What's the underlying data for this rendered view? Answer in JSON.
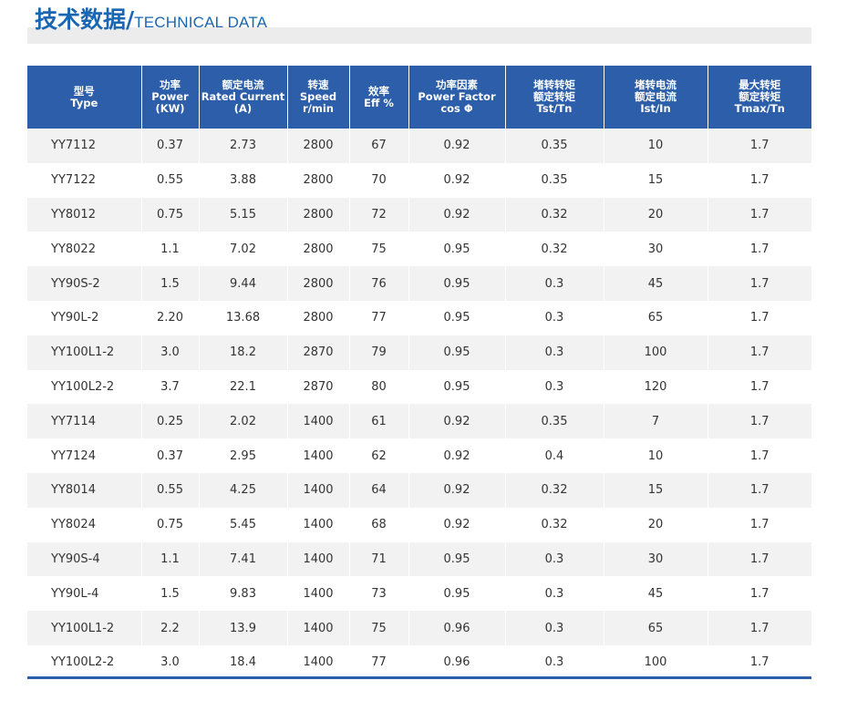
{
  "header": {
    "title_cn": "技术数据/",
    "title_en": "TECHNICAL DATA"
  },
  "table": {
    "columns": [
      [
        "型号",
        "Type"
      ],
      [
        "功率",
        "Power",
        "(KW)"
      ],
      [
        "额定电流",
        "Rated Current",
        "(A)"
      ],
      [
        "转速",
        "Speed",
        "r/min"
      ],
      [
        "效率",
        "Eff %"
      ],
      [
        "功率因素",
        "Power Factor",
        "cos Φ"
      ],
      [
        "堵转转矩",
        "额定转矩",
        "Tst/Tn"
      ],
      [
        "堵转电流",
        "额定电流",
        "Ist/In"
      ],
      [
        "最大转矩",
        "额定转矩",
        "Tmax/Tn"
      ]
    ],
    "rows": [
      [
        "YY7112",
        "0.37",
        "2.73",
        "2800",
        "67",
        "0.92",
        "0.35",
        "10",
        "1.7"
      ],
      [
        "YY7122",
        "0.55",
        "3.88",
        "2800",
        "70",
        "0.92",
        "0.35",
        "15",
        "1.7"
      ],
      [
        "YY8012",
        "0.75",
        "5.15",
        "2800",
        "72",
        "0.92",
        "0.32",
        "20",
        "1.7"
      ],
      [
        "YY8022",
        "1.1",
        "7.02",
        "2800",
        "75",
        "0.95",
        "0.32",
        "30",
        "1.7"
      ],
      [
        "YY90S-2",
        "1.5",
        "9.44",
        "2800",
        "76",
        "0.95",
        "0.3",
        "45",
        "1.7"
      ],
      [
        "YY90L-2",
        "2.20",
        "13.68",
        "2800",
        "77",
        "0.95",
        "0.3",
        "65",
        "1.7"
      ],
      [
        "YY100L1-2",
        "3.0",
        "18.2",
        "2870",
        "79",
        "0.95",
        "0.3",
        "100",
        "1.7"
      ],
      [
        "YY100L2-2",
        "3.7",
        "22.1",
        "2870",
        "80",
        "0.95",
        "0.3",
        "120",
        "1.7"
      ],
      [
        "YY7114",
        "0.25",
        "2.02",
        "1400",
        "61",
        "0.92",
        "0.35",
        "7",
        "1.7"
      ],
      [
        "YY7124",
        "0.37",
        "2.95",
        "1400",
        "62",
        "0.92",
        "0.4",
        "10",
        "1.7"
      ],
      [
        "YY8014",
        "0.55",
        "4.25",
        "1400",
        "64",
        "0.92",
        "0.32",
        "15",
        "1.7"
      ],
      [
        "YY8024",
        "0.75",
        "5.45",
        "1400",
        "68",
        "0.92",
        "0.32",
        "20",
        "1.7"
      ],
      [
        "YY90S-4",
        "1.1",
        "7.41",
        "1400",
        "71",
        "0.95",
        "0.3",
        "30",
        "1.7"
      ],
      [
        "YY90L-4",
        "1.5",
        "9.83",
        "1400",
        "73",
        "0.95",
        "0.3",
        "45",
        "1.7"
      ],
      [
        "YY100L1-2",
        "2.2",
        "13.9",
        "1400",
        "75",
        "0.96",
        "0.3",
        "65",
        "1.7"
      ],
      [
        "YY100L2-2",
        "3.0",
        "18.4",
        "1400",
        "77",
        "0.96",
        "0.3",
        "100",
        "1.7"
      ]
    ]
  },
  "colors": {
    "accent": "#2c5ea9",
    "title": "#1a66b2",
    "row_stripe": "#f2f2f2"
  }
}
